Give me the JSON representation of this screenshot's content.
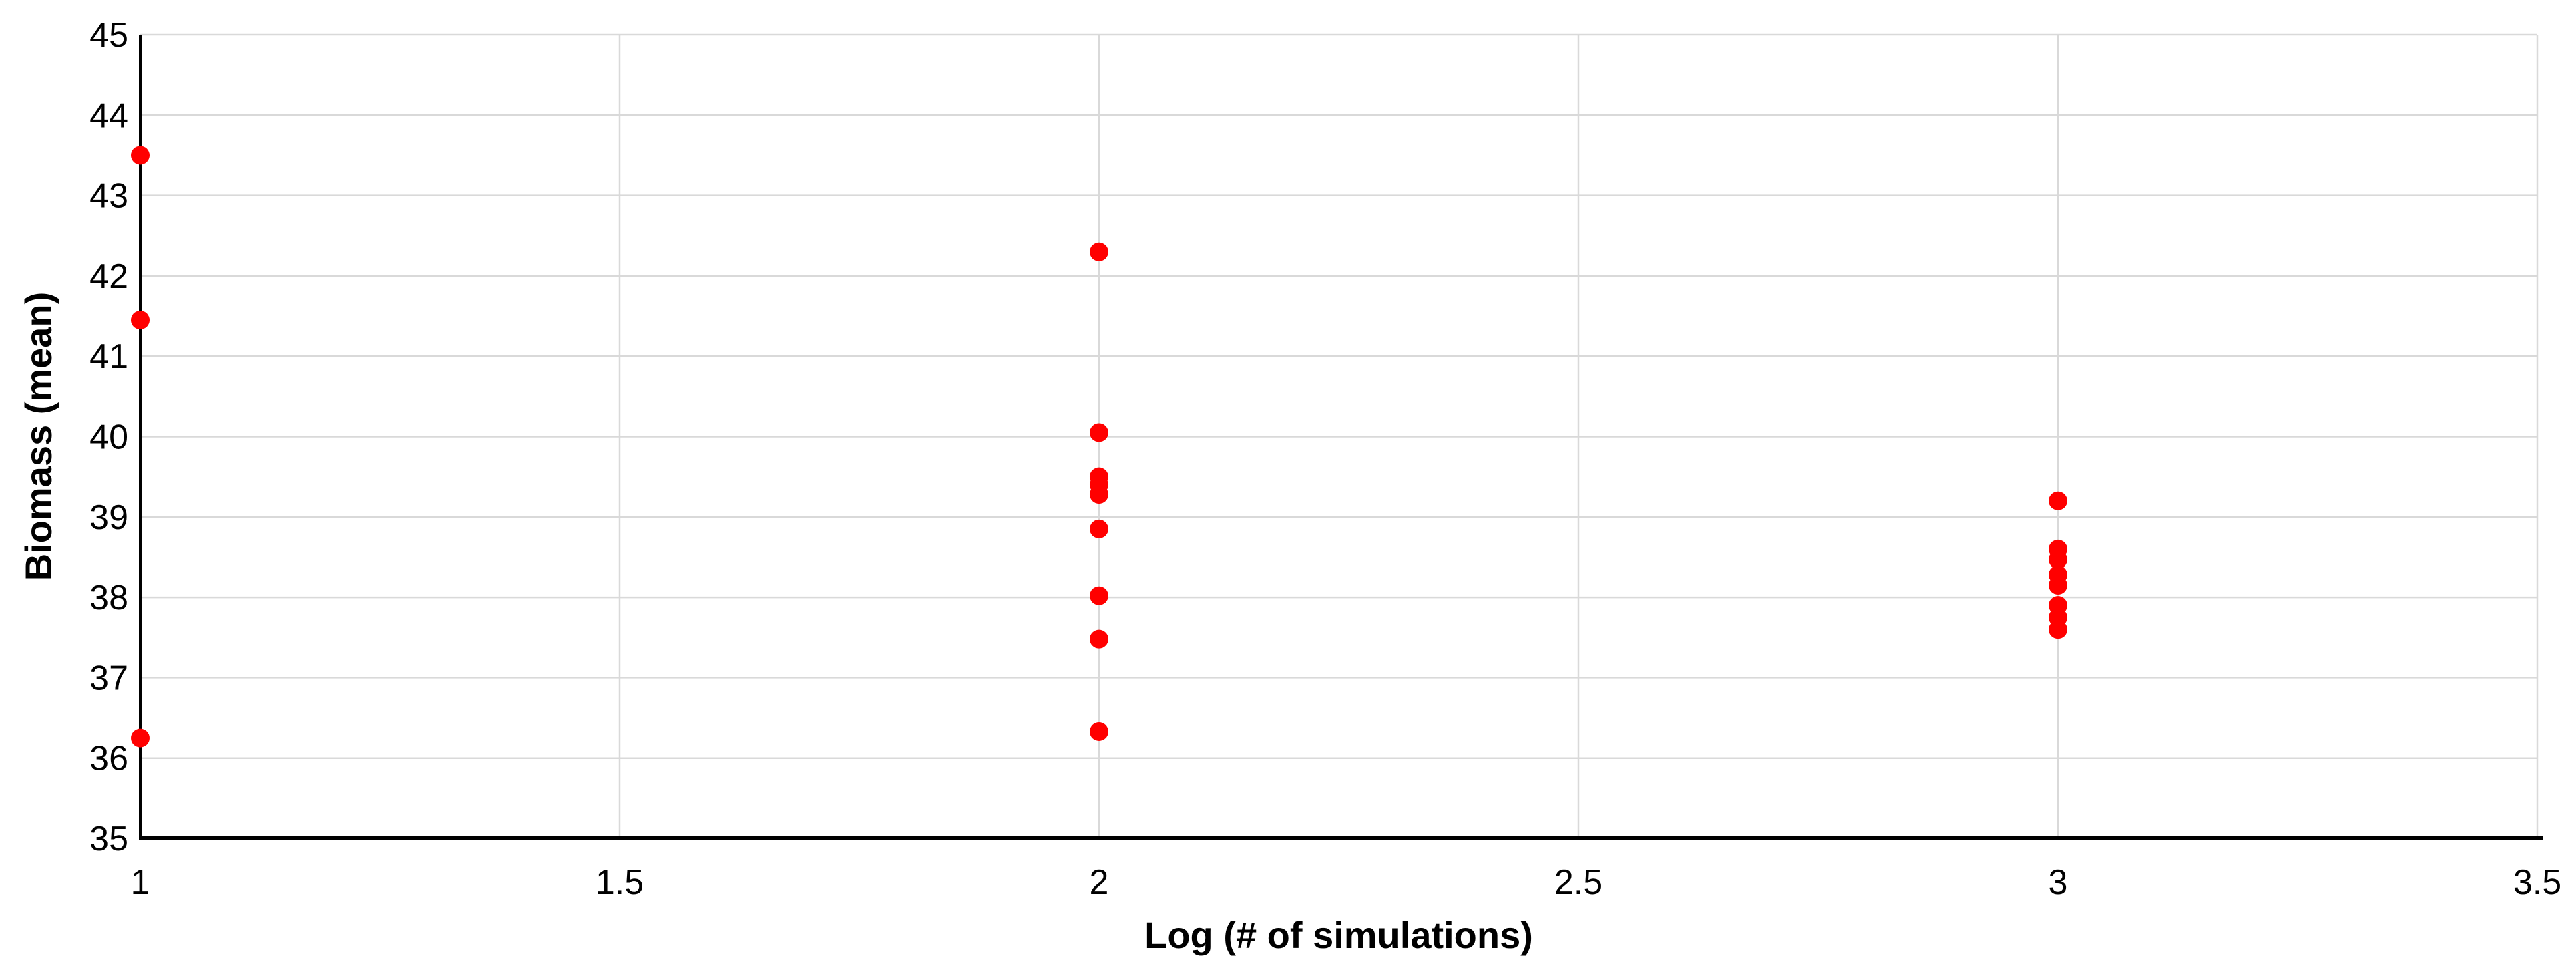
{
  "colors": {
    "marker": "#FF0000",
    "gridline": "#D9D9D9",
    "axis": "#000000",
    "text": "#000000",
    "background": "#FFFFFF"
  },
  "chart_data": {
    "type": "scatter",
    "title": "",
    "xlabel": "Log (# of simulations)",
    "ylabel": "Biomass (mean)",
    "xlim": [
      1,
      3.5
    ],
    "ylim": [
      35,
      45
    ],
    "x_ticks": [
      1,
      1.5,
      2,
      2.5,
      3,
      3.5
    ],
    "x_tick_labels": [
      "1",
      "1.5",
      "2",
      "2.5",
      "3",
      "3.5"
    ],
    "y_ticks": [
      35,
      36,
      37,
      38,
      39,
      40,
      41,
      42,
      43,
      44,
      45
    ],
    "y_tick_labels": [
      "35",
      "36",
      "37",
      "38",
      "39",
      "40",
      "41",
      "42",
      "43",
      "44",
      "45"
    ],
    "grid": true,
    "legend": "none",
    "series": [
      {
        "name": "Biomass (mean)",
        "marker": "circle",
        "color": "#FF0000",
        "points": [
          {
            "x": 1,
            "y": 43.5
          },
          {
            "x": 1,
            "y": 41.45
          },
          {
            "x": 1,
            "y": 36.25
          },
          {
            "x": 2,
            "y": 42.3
          },
          {
            "x": 2,
            "y": 40.05
          },
          {
            "x": 2,
            "y": 39.5
          },
          {
            "x": 2,
            "y": 39.4
          },
          {
            "x": 2,
            "y": 39.28
          },
          {
            "x": 2,
            "y": 38.85
          },
          {
            "x": 2,
            "y": 38.02
          },
          {
            "x": 2,
            "y": 37.48
          },
          {
            "x": 2,
            "y": 36.33
          },
          {
            "x": 3,
            "y": 39.2
          },
          {
            "x": 3,
            "y": 38.6
          },
          {
            "x": 3,
            "y": 38.47
          },
          {
            "x": 3,
            "y": 38.28
          },
          {
            "x": 3,
            "y": 38.15
          },
          {
            "x": 3,
            "y": 37.9
          },
          {
            "x": 3,
            "y": 37.75
          },
          {
            "x": 3,
            "y": 37.6
          }
        ]
      }
    ]
  }
}
